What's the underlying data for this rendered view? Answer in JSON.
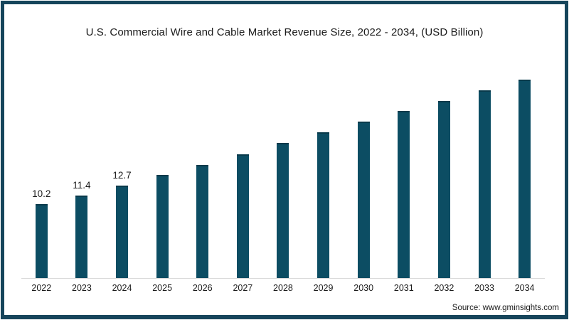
{
  "title": "U.S. Commercial Wire and Cable Market Revenue Size, 2022 - 2034, (USD Billion)",
  "source": "Source: www.gminsights.com",
  "colors": {
    "bar": "#0c4d63",
    "bar_cap": "#093a4b",
    "frame": "#16455b",
    "axis_line": "#d9d9d9",
    "text": "#1a1a1a"
  },
  "chart_data": {
    "type": "bar",
    "title": "U.S. Commercial Wire and Cable Market Revenue Size, 2022 - 2034, (USD Billion)",
    "categories": [
      "2022",
      "2023",
      "2024",
      "2025",
      "2026",
      "2027",
      "2028",
      "2029",
      "2030",
      "2031",
      "2032",
      "2033",
      "2034"
    ],
    "values": [
      10.2,
      11.4,
      12.7,
      14.2,
      15.6,
      17.1,
      18.6,
      20.1,
      21.6,
      23.0,
      24.4,
      25.9,
      27.4
    ],
    "data_labels": [
      "10.2",
      "11.4",
      "12.7",
      "",
      "",
      "",
      "",
      "",
      "",
      "",
      "",
      "",
      ""
    ],
    "xlabel": "",
    "ylabel": "",
    "ylim": [
      0,
      28
    ],
    "grid": false,
    "legend": false,
    "y_axis_shown": false,
    "bar_color": "#0c4d63"
  }
}
